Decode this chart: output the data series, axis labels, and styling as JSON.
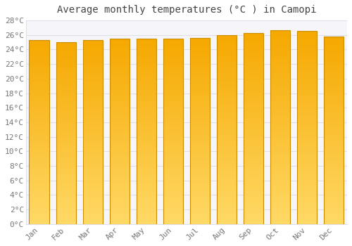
{
  "title": "Average monthly temperatures (°C ) in Camopi",
  "months": [
    "Jan",
    "Feb",
    "Mar",
    "Apr",
    "May",
    "Jun",
    "Jul",
    "Aug",
    "Sep",
    "Oct",
    "Nov",
    "Dec"
  ],
  "values": [
    25.3,
    25.0,
    25.3,
    25.5,
    25.5,
    25.5,
    25.6,
    26.0,
    26.3,
    26.7,
    26.6,
    25.8
  ],
  "ylim": [
    0,
    28
  ],
  "yticks": [
    0,
    2,
    4,
    6,
    8,
    10,
    12,
    14,
    16,
    18,
    20,
    22,
    24,
    26,
    28
  ],
  "ytick_labels": [
    "0°C",
    "2°C",
    "4°C",
    "6°C",
    "8°C",
    "10°C",
    "12°C",
    "14°C",
    "16°C",
    "18°C",
    "20°C",
    "22°C",
    "24°C",
    "26°C",
    "28°C"
  ],
  "bar_color_top": "#F5A800",
  "bar_color_bottom": "#FFD966",
  "bar_edge_color": "#CC8C00",
  "background_color": "#FFFFFF",
  "plot_bg_color": "#F5F5FA",
  "grid_color": "#E0E0E8",
  "title_fontsize": 10,
  "tick_fontsize": 8,
  "title_color": "#444444",
  "tick_color": "#777777"
}
